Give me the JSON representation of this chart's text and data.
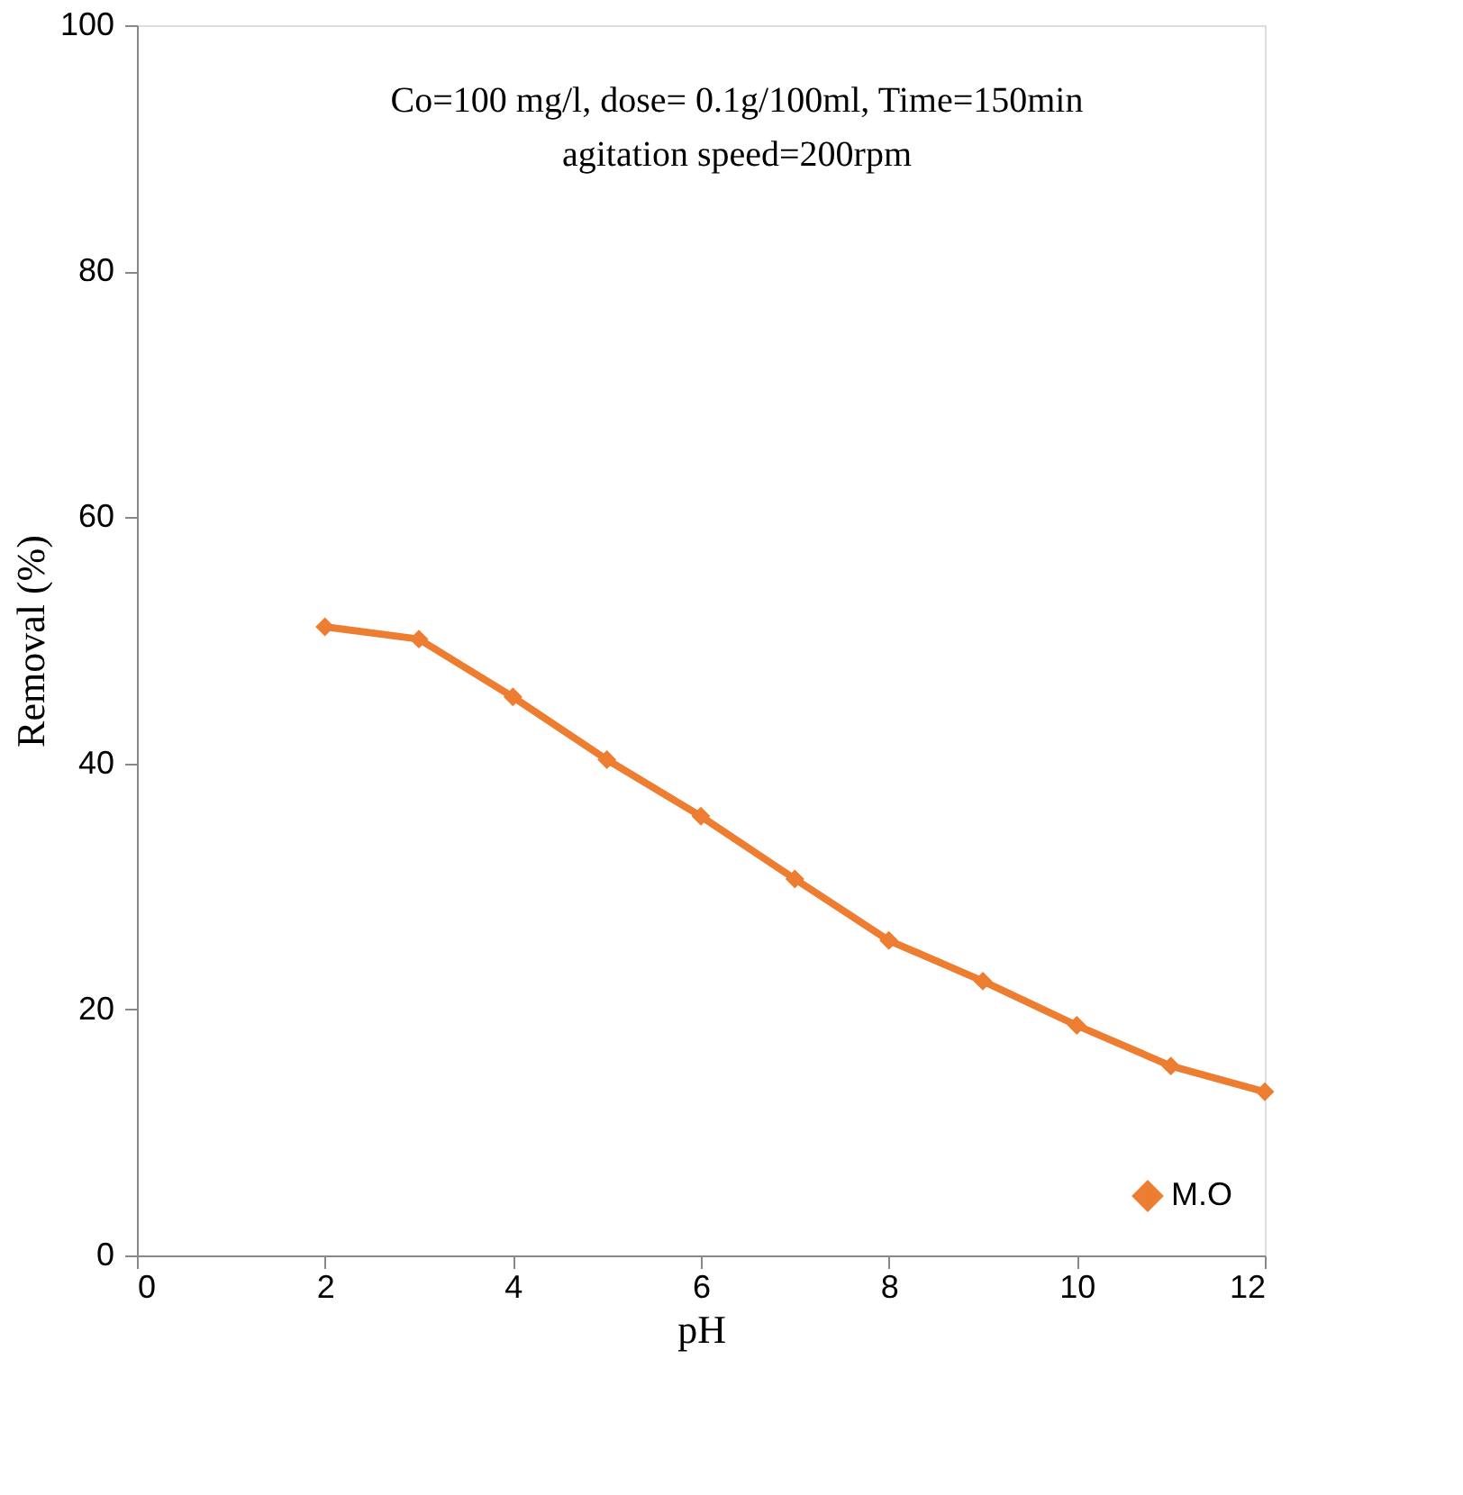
{
  "chart_data": {
    "type": "line",
    "xlabel": "pH",
    "ylabel": "Removal (%)",
    "annotations": [
      "Co=100 mg/l, dose= 0.1g/100ml, Time=150min",
      "agitation speed=200rpm"
    ],
    "x": [
      2,
      3,
      4,
      5,
      6,
      7,
      8,
      9,
      10,
      11,
      12
    ],
    "series": [
      {
        "name": "M.O",
        "color": "#ed7d31",
        "values": [
          51.1,
          50.1,
          45.4,
          40.3,
          35.7,
          30.6,
          25.6,
          22.3,
          18.7,
          15.4,
          13.3
        ]
      }
    ],
    "xlim": [
      0,
      12
    ],
    "xticks": [
      0,
      2,
      4,
      6,
      8,
      10,
      12
    ],
    "ylim": [
      0,
      100
    ],
    "yticks": [
      0,
      20,
      40,
      60,
      80,
      100
    ],
    "grid": false,
    "legend": "bottom right",
    "marker": "diamond",
    "line_style": "solid"
  }
}
